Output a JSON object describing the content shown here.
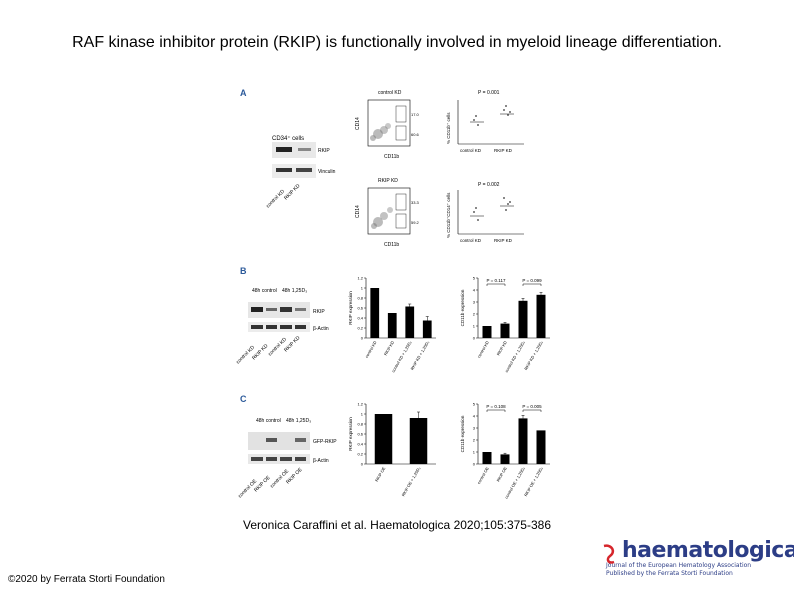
{
  "slide": {
    "title": "RAF kinase inhibitor protein (RKIP) is functionally involved in myeloid lineage differentiation.",
    "citation": "Veronica Caraffini et al. Haematologica 2020;105:375-386",
    "copyright": "©2020 by Ferrata Storti Foundation"
  },
  "logo": {
    "name": "haematologica",
    "line1": "Journal of the European Hematology Association",
    "line2": "Published by the Ferrata Storti Foundation",
    "colors": {
      "primary": "#2c3d86",
      "accent": "#d6262c"
    }
  },
  "panels": {
    "a": {
      "letter": "A",
      "western_title": "CD34⁺ cells",
      "western_rows": [
        "RKIP",
        "Vinculin"
      ],
      "western_lanes": [
        "control KD",
        "RKIP KD"
      ],
      "flow_plots": [
        {
          "title": "control KD",
          "ylabel": "CD14",
          "xlabel": "CD11b",
          "gate_values": [
            "17.0",
            "60.6"
          ]
        },
        {
          "title": "RKIP KD",
          "ylabel": "CD14",
          "xlabel": "CD11b",
          "gate_values": [
            "33.3",
            "59.2"
          ]
        }
      ],
      "dot_plots": [
        {
          "p_value": "P = 0.001",
          "ylabel": "% CD11b⁺ cells",
          "categories": [
            "control KD",
            "RKIP KD"
          ]
        },
        {
          "p_value": "P = 0.002",
          "ylabel": "% CD11b⁺CD14⁺ cells",
          "categories": [
            "control KD",
            "RKIP KD"
          ]
        }
      ]
    },
    "b": {
      "letter": "B",
      "western_groups": [
        "48h control",
        "48h 1,25D₃"
      ],
      "western_rows": [
        "RKIP",
        "β-Actin"
      ],
      "western_lanes": [
        "control KD",
        "RKIP KD",
        "control KD",
        "RKIP KD"
      ]
    },
    "c": {
      "letter": "C",
      "western_groups": [
        "48h control",
        "48h 1,25D₃"
      ],
      "western_rows": [
        "GFP-RKIP",
        "β-Actin"
      ],
      "western_lanes": [
        "control OE",
        "RKIP OE",
        "control OE",
        "RKIP OE"
      ]
    }
  },
  "chart_data": [
    {
      "type": "bar",
      "panel": "B",
      "ylabel": "RKIP expression",
      "ylim": [
        0,
        1.2
      ],
      "ticks": [
        "0",
        "0.2",
        "0.4",
        "0.6",
        "0.8",
        "1",
        "1.2"
      ],
      "categories": [
        "control KD",
        "RKIP KD",
        "control KD + 1,25D₃",
        "RKIP KD + 1,25D₃"
      ],
      "values": [
        1.0,
        0.5,
        0.63,
        0.35
      ],
      "errors": [
        0,
        0,
        0.05,
        0.08
      ]
    },
    {
      "type": "bar",
      "panel": "B",
      "ylabel": "CD11b expression",
      "ylim": [
        0,
        5
      ],
      "ticks": [
        "0",
        "1",
        "2",
        "3",
        "4",
        "5"
      ],
      "categories": [
        "control KD",
        "RKIP KD",
        "control KD + 1,25D₃",
        "RKIP KD + 1,25D₃"
      ],
      "values": [
        1.0,
        1.2,
        3.1,
        3.6
      ],
      "errors": [
        0,
        0.1,
        0.2,
        0.2
      ],
      "annotations": [
        "P = 0.117",
        "P = 0.099"
      ]
    },
    {
      "type": "bar",
      "panel": "C",
      "ylabel": "RKIP expression",
      "ylim": [
        0,
        1.2
      ],
      "ticks": [
        "0",
        "0.2",
        "0.4",
        "0.6",
        "0.8",
        "1",
        "1.2"
      ],
      "categories": [
        "RKIP OE",
        "RKIP OE + 1,25D₃"
      ],
      "values": [
        1.0,
        0.92
      ],
      "errors": [
        0,
        0.12
      ]
    },
    {
      "type": "bar",
      "panel": "C",
      "ylabel": "CD11b expression",
      "ylim": [
        0,
        5
      ],
      "ticks": [
        "0",
        "1",
        "2",
        "3",
        "4",
        "5"
      ],
      "categories": [
        "control OE",
        "RKIP OE",
        "control OE + 1,25D₃",
        "RKIP OE + 1,25D₃"
      ],
      "values": [
        1.0,
        0.8,
        3.8,
        2.8
      ],
      "errors": [
        0,
        0.1,
        0.25,
        0
      ],
      "annotations": [
        "P = 0.108",
        "P = 0.005"
      ]
    }
  ]
}
